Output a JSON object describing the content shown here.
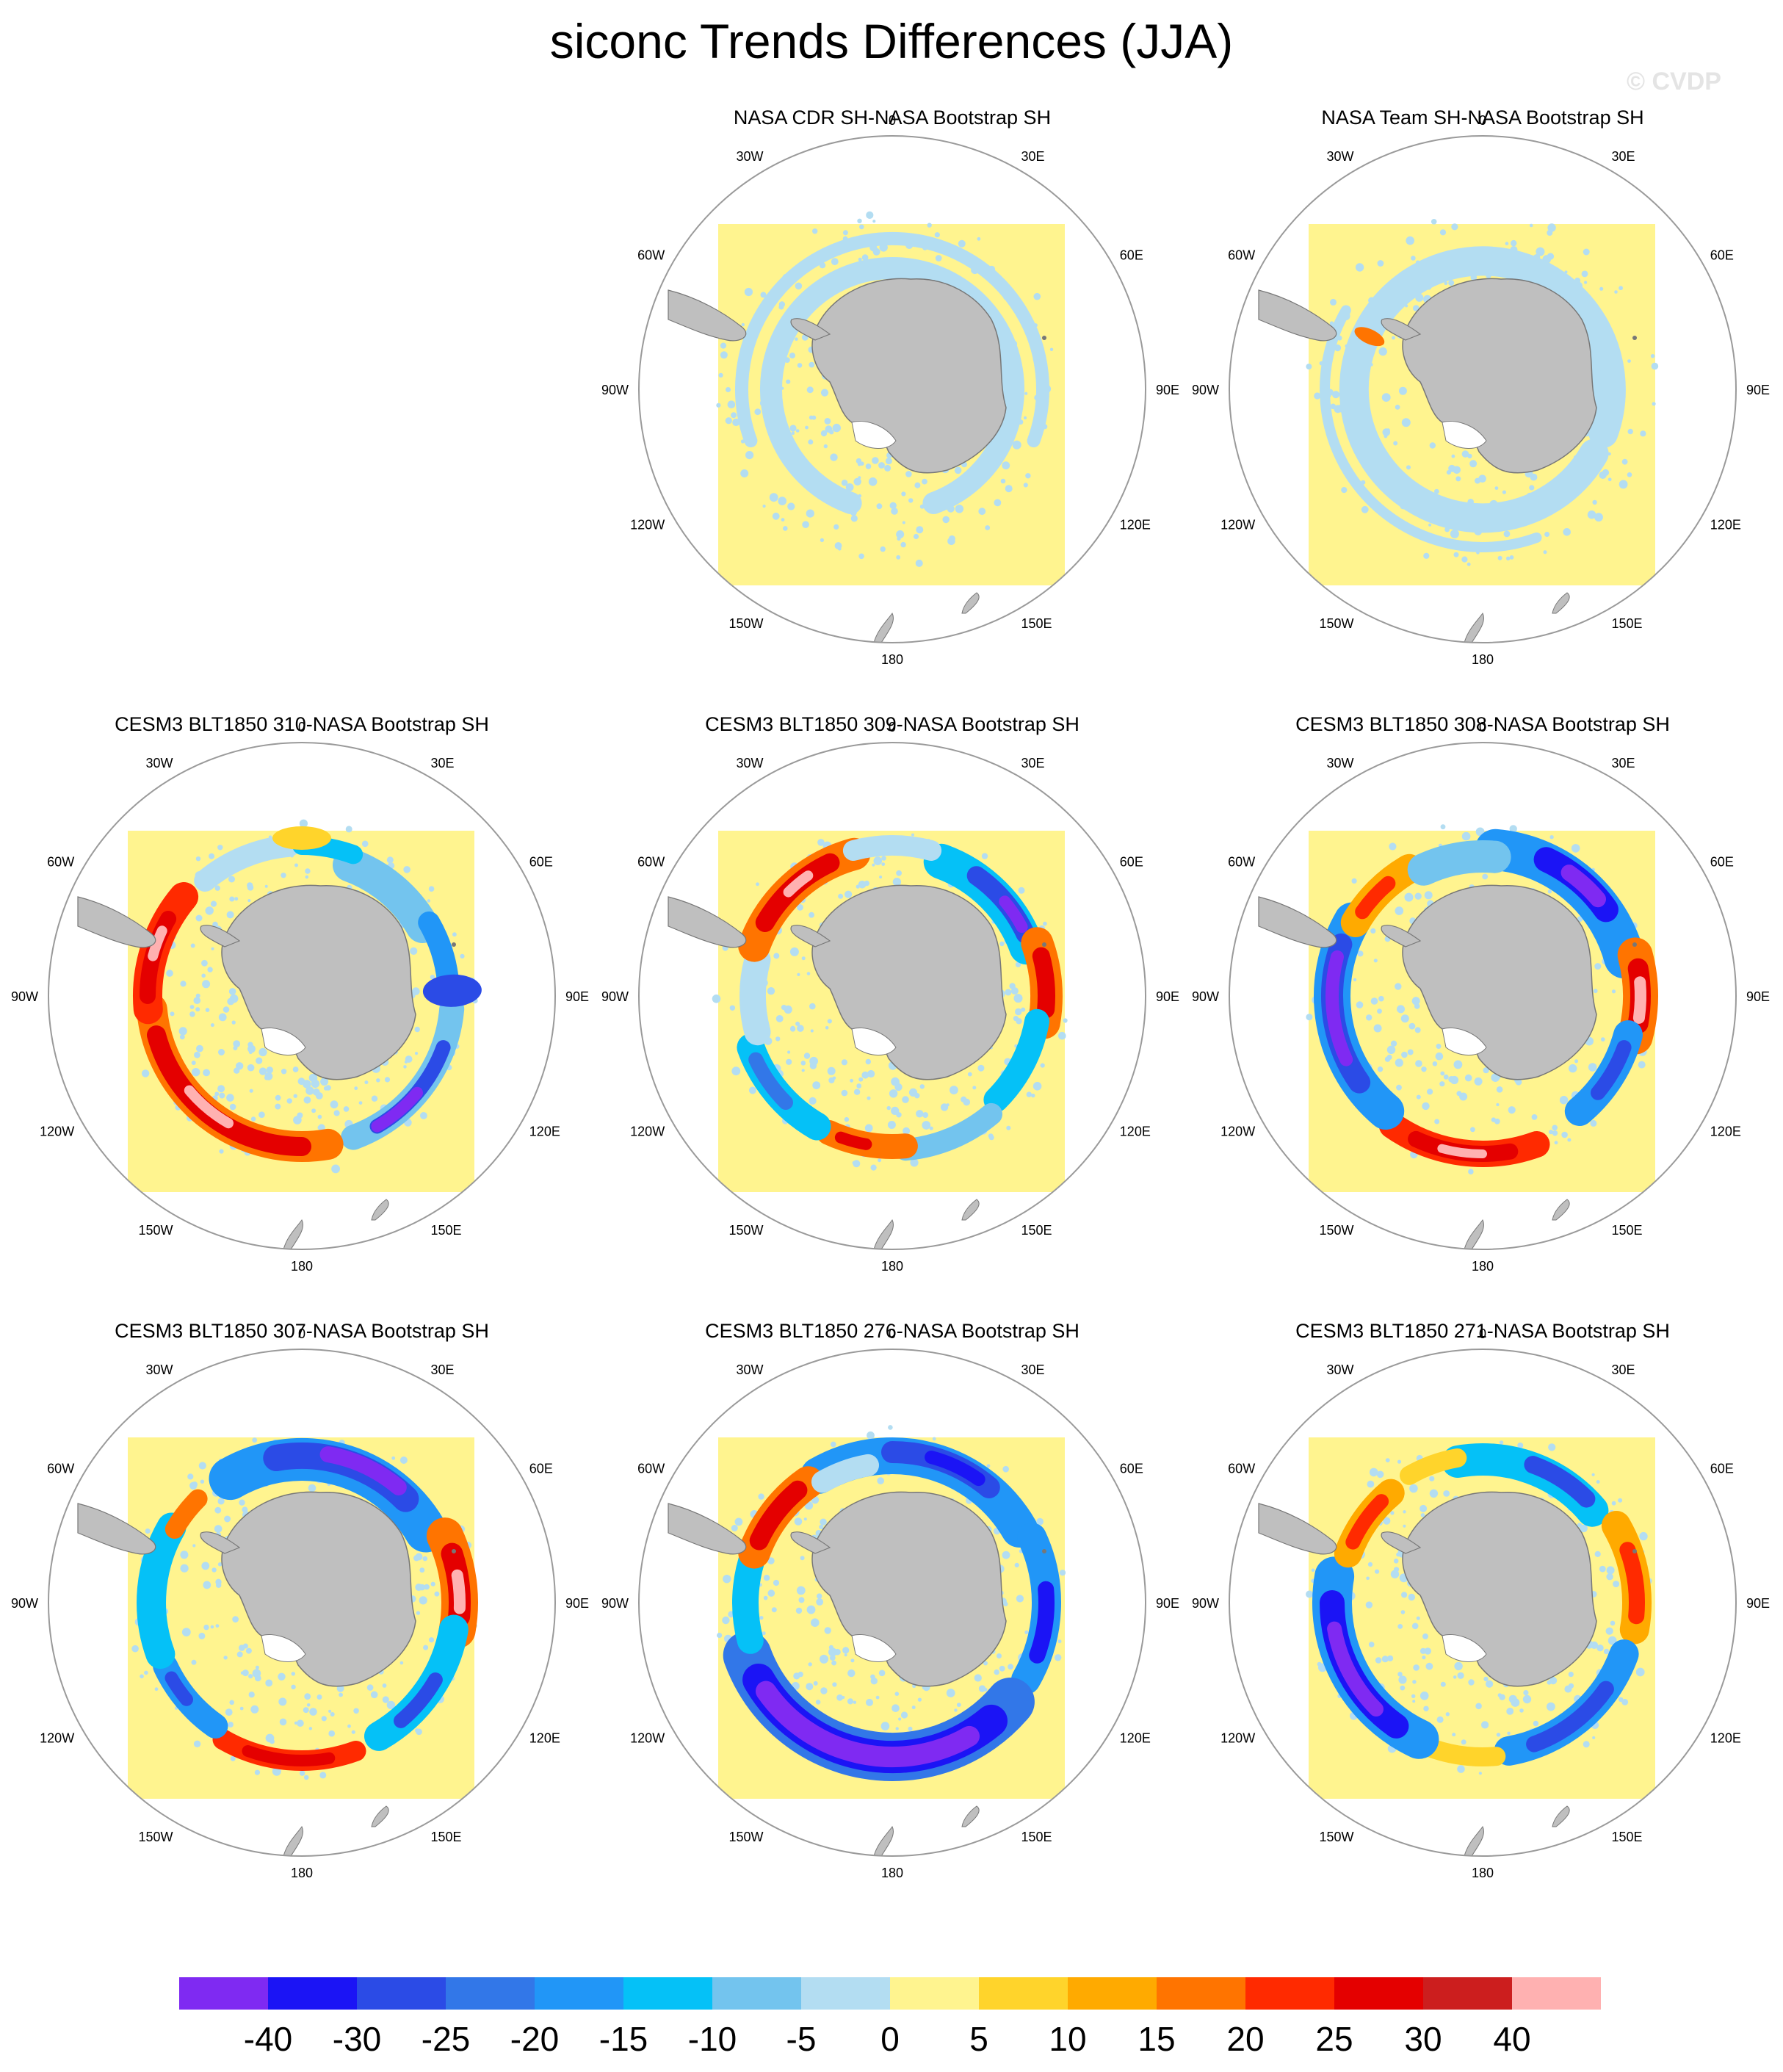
{
  "title": "siconc Trends Differences (JJA)",
  "watermark": "© CVDP",
  "panels": [
    {
      "title": "NASA CDR SH-NASA Bootstrap SH",
      "pattern": "small_neg"
    },
    {
      "title": "NASA Team SH-NASA Bootstrap SH",
      "pattern": "small_neg2"
    },
    {
      "title": "CESM3 BLT1850 310-NASA Bootstrap SH",
      "pattern": "m310"
    },
    {
      "title": "CESM3 BLT1850 309-NASA Bootstrap SH",
      "pattern": "m309"
    },
    {
      "title": "CESM3 BLT1850 308-NASA Bootstrap SH",
      "pattern": "m308"
    },
    {
      "title": "CESM3 BLT1850 307-NASA Bootstrap SH",
      "pattern": "m307"
    },
    {
      "title": "CESM3 BLT1850 276-NASA Bootstrap SH",
      "pattern": "m276"
    },
    {
      "title": "CESM3 BLT1850 271-NASA Bootstrap SH",
      "pattern": "m271"
    }
  ],
  "lon_labels": [
    "0",
    "30E",
    "60E",
    "90E",
    "120E",
    "150E",
    "180",
    "150W",
    "120W",
    "90W",
    "60W",
    "30W"
  ],
  "colorbar": {
    "labels": [
      "-40",
      "-30",
      "-25",
      "-20",
      "-15",
      "-10",
      "-5",
      "0",
      "5",
      "10",
      "15",
      "20",
      "25",
      "30",
      "40"
    ],
    "colors": [
      "#7f2af2",
      "#1b14f5",
      "#2b4be6",
      "#3277e8",
      "#2196f7",
      "#05c1f7",
      "#73c4ee",
      "#b3ddf2",
      "#fff48f",
      "#ffd42b",
      "#ffaa00",
      "#ff7400",
      "#ff2a00",
      "#e40000",
      "#cc1e1e",
      "#ffb1b1"
    ]
  },
  "colors": {
    "land": "#bfbfbf",
    "ocean_base": "#fff48f",
    "coast": "#777777",
    "rim": "#9a9a9a"
  }
}
